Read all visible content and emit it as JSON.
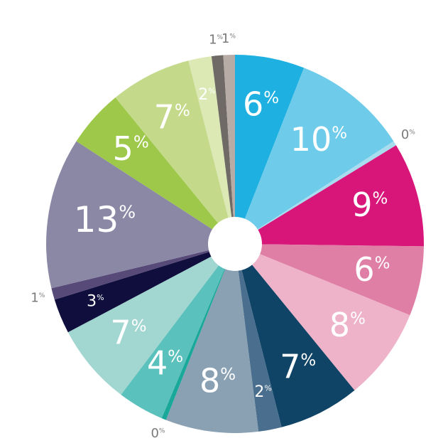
{
  "chart_data": {
    "type": "pie",
    "unit": "%",
    "values": [
      6,
      10,
      0.4,
      9,
      6,
      8,
      7,
      2,
      8,
      0.4,
      4,
      7,
      3,
      1,
      13,
      5,
      7,
      2,
      1,
      1
    ],
    "value_labels": [
      "6",
      "10",
      "0",
      "9",
      "6",
      "8",
      "7",
      "2",
      "8",
      "0",
      "4",
      "7",
      "3",
      "1",
      "13",
      "5",
      "7",
      "2",
      "1",
      "1"
    ],
    "colors": [
      "#1eb0e0",
      "#6ecbea",
      "#a8dcef",
      "#d8167a",
      "#e07fa5",
      "#eeb3c8",
      "#0f4466",
      "#4a6f8e",
      "#8aa1b4",
      "#1aa89a",
      "#5bc1bc",
      "#a2d6d0",
      "#0f0e3d",
      "#574a78",
      "#8b88a6",
      "#9ec84a",
      "#c4da8a",
      "#dce9b5",
      "#6f6a66",
      "#b8aca6"
    ],
    "donut": true
  }
}
